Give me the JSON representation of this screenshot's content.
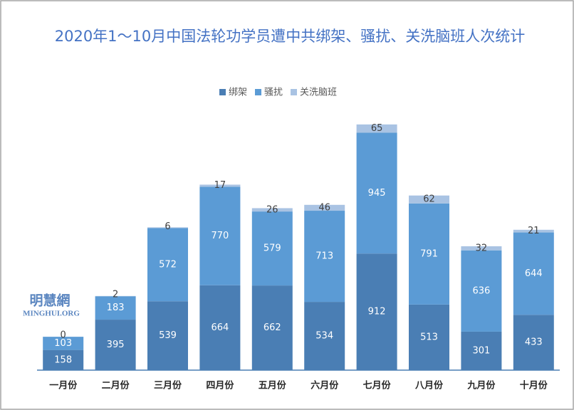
{
  "chart_data": {
    "type": "stacked-bar",
    "title": "2020年1～10月中国法轮功学员遭中共绑架、骚扰、关洗脑班人次统计",
    "categories": [
      "一月份",
      "二月份",
      "三月份",
      "四月份",
      "五月份",
      "六月份",
      "七月份",
      "八月份",
      "九月份",
      "十月份"
    ],
    "series": [
      {
        "name": "绑架",
        "color": "#4a7eb4",
        "values": [
          158,
          395,
          539,
          664,
          662,
          534,
          912,
          513,
          301,
          433
        ]
      },
      {
        "name": "骚扰",
        "color": "#5b9bd5",
        "values": [
          103,
          183,
          572,
          770,
          579,
          713,
          945,
          791,
          636,
          644
        ]
      },
      {
        "name": "关洗脑班",
        "color": "#a9c3e3",
        "values": [
          0,
          2,
          6,
          17,
          26,
          46,
          65,
          62,
          32,
          21
        ]
      }
    ],
    "ylim": [
      0,
      2500
    ],
    "annotations": [
      "明慧網",
      "MINGHUI.ORG"
    ]
  }
}
